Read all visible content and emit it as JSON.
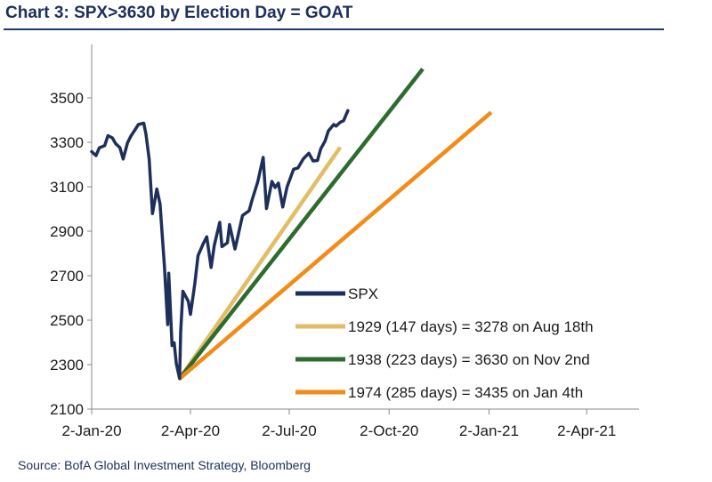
{
  "title": "Chart 3: SPX>3630 by Election Day = GOAT",
  "source": "Source: BofA Global Investment Strategy, Bloomberg",
  "chart_data": {
    "type": "line",
    "xlabel": "",
    "ylabel": "",
    "x_ticks": [
      "2-Jan-20",
      "2-Apr-20",
      "2-Jul-20",
      "2-Oct-20",
      "2-Jan-21",
      "2-Apr-21"
    ],
    "ylim": [
      2100,
      3700
    ],
    "y_ticks": [
      2100,
      2300,
      2500,
      2700,
      2900,
      3100,
      3300,
      3500
    ],
    "grid": false,
    "legend_position": "bottom-right",
    "series": [
      {
        "name": "SPX",
        "color": "#1f2f5c",
        "points": [
          [
            "2020-01-02",
            3258
          ],
          [
            "2020-01-06",
            3240
          ],
          [
            "2020-01-09",
            3275
          ],
          [
            "2020-01-14",
            3285
          ],
          [
            "2020-01-17",
            3330
          ],
          [
            "2020-01-21",
            3320
          ],
          [
            "2020-01-24",
            3295
          ],
          [
            "2020-01-28",
            3276
          ],
          [
            "2020-01-31",
            3225
          ],
          [
            "2020-02-04",
            3298
          ],
          [
            "2020-02-07",
            3327
          ],
          [
            "2020-02-11",
            3357
          ],
          [
            "2020-02-14",
            3380
          ],
          [
            "2020-02-19",
            3386
          ],
          [
            "2020-02-21",
            3337
          ],
          [
            "2020-02-24",
            3225
          ],
          [
            "2020-02-27",
            2979
          ],
          [
            "2020-03-02",
            3090
          ],
          [
            "2020-03-05",
            3023
          ],
          [
            "2020-03-09",
            2746
          ],
          [
            "2020-03-12",
            2480
          ],
          [
            "2020-03-13",
            2711
          ],
          [
            "2020-03-16",
            2386
          ],
          [
            "2020-03-18",
            2398
          ],
          [
            "2020-03-20",
            2305
          ],
          [
            "2020-03-23",
            2237
          ],
          [
            "2020-03-24",
            2447
          ],
          [
            "2020-03-26",
            2630
          ],
          [
            "2020-03-31",
            2585
          ],
          [
            "2020-04-02",
            2526
          ],
          [
            "2020-04-06",
            2664
          ],
          [
            "2020-04-09",
            2790
          ],
          [
            "2020-04-14",
            2846
          ],
          [
            "2020-04-17",
            2875
          ],
          [
            "2020-04-21",
            2737
          ],
          [
            "2020-04-24",
            2837
          ],
          [
            "2020-04-29",
            2940
          ],
          [
            "2020-05-01",
            2831
          ],
          [
            "2020-05-06",
            2848
          ],
          [
            "2020-05-08",
            2930
          ],
          [
            "2020-05-13",
            2820
          ],
          [
            "2020-05-15",
            2863
          ],
          [
            "2020-05-20",
            2971
          ],
          [
            "2020-05-26",
            2992
          ],
          [
            "2020-05-29",
            3044
          ],
          [
            "2020-06-03",
            3122
          ],
          [
            "2020-06-08",
            3232
          ],
          [
            "2020-06-11",
            3002
          ],
          [
            "2020-06-16",
            3124
          ],
          [
            "2020-06-19",
            3097
          ],
          [
            "2020-06-22",
            3117
          ],
          [
            "2020-06-26",
            3009
          ],
          [
            "2020-06-30",
            3100
          ],
          [
            "2020-07-06",
            3179
          ],
          [
            "2020-07-10",
            3185
          ],
          [
            "2020-07-15",
            3226
          ],
          [
            "2020-07-20",
            3251
          ],
          [
            "2020-07-24",
            3216
          ],
          [
            "2020-07-28",
            3218
          ],
          [
            "2020-07-31",
            3271
          ],
          [
            "2020-08-04",
            3306
          ],
          [
            "2020-08-07",
            3351
          ],
          [
            "2020-08-12",
            3380
          ],
          [
            "2020-08-14",
            3373
          ],
          [
            "2020-08-18",
            3390
          ],
          [
            "2020-08-21",
            3397
          ],
          [
            "2020-08-25",
            3443
          ]
        ]
      },
      {
        "name": "1929 (147 days) = 3278 on Aug 18th",
        "color": "#e1bd66",
        "points": [
          [
            "2020-03-23",
            2237
          ],
          [
            "2020-08-18",
            3278
          ]
        ]
      },
      {
        "name": "1938 (223 days) = 3630 on Nov 2nd",
        "color": "#2e6b2e",
        "points": [
          [
            "2020-03-23",
            2237
          ],
          [
            "2020-11-02",
            3630
          ]
        ]
      },
      {
        "name": "1974 (285 days) = 3435 on Jan 4th",
        "color": "#f28c17",
        "points": [
          [
            "2020-03-23",
            2237
          ],
          [
            "2021-01-04",
            3435
          ]
        ]
      }
    ]
  }
}
